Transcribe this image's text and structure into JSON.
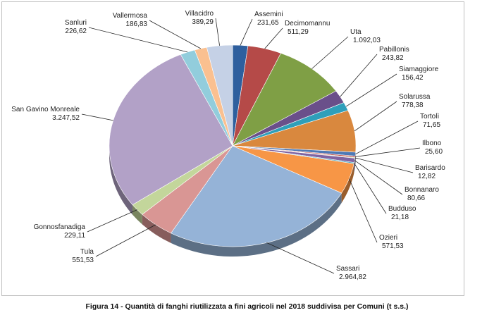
{
  "caption": "Figura 14 - Quantità di fanghi riutilizzata a fini agricoli nel 2018 suddivisa per Comuni (t s.s.)",
  "chart_data": {
    "type": "pie",
    "title": "",
    "slices": [
      {
        "name": "Assemini",
        "value": 231.65,
        "label": "231,65",
        "color": "#2e5f9e"
      },
      {
        "name": "Decimomannu",
        "value": 511.29,
        "label": "511,29",
        "color": "#b54a48"
      },
      {
        "name": "Uta",
        "value": 1092.03,
        "label": "1.092,03",
        "color": "#7f9f45"
      },
      {
        "name": "Pabillonis",
        "value": 243.82,
        "label": "243,82",
        "color": "#6a4f8a"
      },
      {
        "name": "Siamaggiore",
        "value": 156.42,
        "label": "156,42",
        "color": "#2f9fba"
      },
      {
        "name": "Solarussa",
        "value": 778.38,
        "label": "778,38",
        "color": "#d9883e"
      },
      {
        "name": "Tortolì",
        "value": 71.65,
        "label": "71,65",
        "color": "#4e79b5"
      },
      {
        "name": "Ilbono",
        "value": 25.6,
        "label": "25,60",
        "color": "#c0504d"
      },
      {
        "name": "Barisardo",
        "value": 12.82,
        "label": "12,82",
        "color": "#9bbb59"
      },
      {
        "name": "Bonnanaro",
        "value": 80.66,
        "label": "80,66",
        "color": "#8064a2"
      },
      {
        "name": "Budduso",
        "value": 21.18,
        "label": "21,18",
        "color": "#4bacc6"
      },
      {
        "name": "Ozieri",
        "value": 571.53,
        "label": "571,53",
        "color": "#f79646"
      },
      {
        "name": "Sassari",
        "value": 2964.82,
        "label": "2.964,82",
        "color": "#95b3d7"
      },
      {
        "name": "Tula",
        "value": 551.53,
        "label": "551,53",
        "color": "#d99694"
      },
      {
        "name": "Gonnosfanadiga",
        "value": 229.11,
        "label": "229,11",
        "color": "#c3d69b"
      },
      {
        "name": "San Gavino Monreale",
        "value": 3247.52,
        "label": "3.247,52",
        "color": "#b2a1c7"
      },
      {
        "name": "Sanluri",
        "value": 226.62,
        "label": "226,62",
        "color": "#92cddc"
      },
      {
        "name": "Vallermosa",
        "value": 186.83,
        "label": "186,83",
        "color": "#fac090"
      },
      {
        "name": "Villacidro",
        "value": 389.29,
        "label": "389,29",
        "color": "#c5d1e6"
      }
    ]
  }
}
